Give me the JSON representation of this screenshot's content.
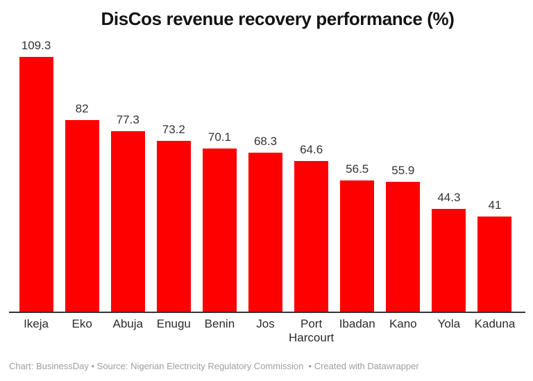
{
  "chart_data": {
    "type": "bar",
    "title": "DisCos revenue recovery performance (%)",
    "categories": [
      "Ikeja",
      "Eko",
      "Abuja",
      "Enugu",
      "Benin",
      "Jos",
      "Port Harcourt",
      "Ibadan",
      "Kano",
      "Yola",
      "Kaduna"
    ],
    "values": [
      109.3,
      82,
      77.3,
      73.2,
      70.1,
      68.3,
      64.6,
      56.5,
      55.9,
      44.3,
      41
    ],
    "value_labels": [
      "109.3",
      "82",
      "77.3",
      "73.2",
      "70.1",
      "68.3",
      "64.6",
      "56.5",
      "55.9",
      "44.3",
      "41"
    ],
    "xlabel": "",
    "ylabel": "",
    "ylim": [
      0,
      109.3
    ],
    "grid": false,
    "legend": false,
    "bar_color": "#fe0000",
    "axis_line_color": "#333333"
  },
  "footer": {
    "text": "Chart: BusinessDay • Source: Nigerian Electricity Regulatory Commission  • Created with Datawrapper"
  },
  "colors": {
    "title": "#141414",
    "value_label": "#333333",
    "category_label": "#2b2b2b",
    "footer": "#9e9e9e",
    "background": "#ffffff"
  }
}
